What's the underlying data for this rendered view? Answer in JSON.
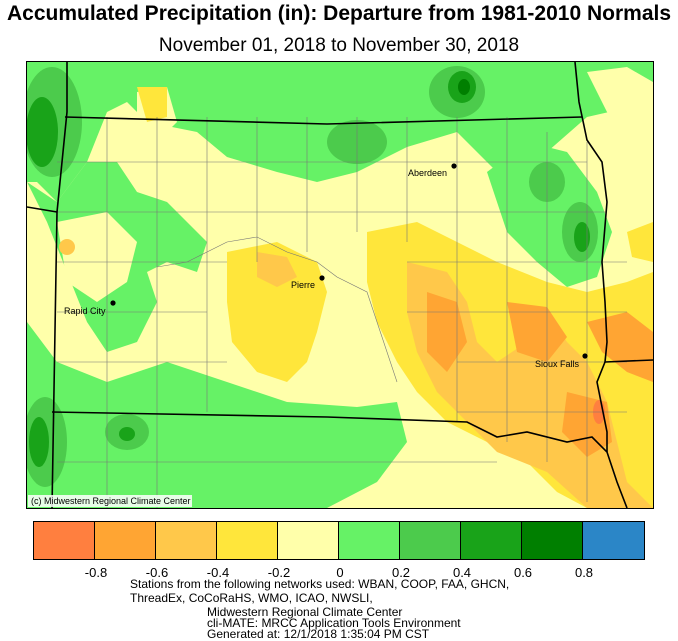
{
  "title": "Accumulated Precipitation (in): Departure from 1981-2010 Normals",
  "subtitle": "November 01, 2018 to November 30, 2018",
  "credit": "(c) Midwestern Regional Climate Center",
  "cities": [
    {
      "name": "Aberdeen"
    },
    {
      "name": "Pierre"
    },
    {
      "name": "Rapid City"
    },
    {
      "name": "Sioux Falls"
    }
  ],
  "legend": {
    "colors": [
      "#ff7f3f",
      "#ffa533",
      "#ffc84a",
      "#ffe63b",
      "#ffffaa",
      "#66f266",
      "#4ccb4c",
      "#19a319",
      "#007f00",
      "#2b86c7"
    ],
    "ticks": [
      "-0.8",
      "-0.6",
      "-0.4",
      "-0.2",
      "0",
      "0.2",
      "0.4",
      "0.6",
      "0.8"
    ]
  },
  "footer": {
    "line1": "Stations from the following networks used: WBAN, COOP, FAA, GHCN,",
    "line2": "ThreadEx, CoCoRaHS, WMO, ICAO, NWSLI,",
    "line3": "Midwestern Regional Climate Center",
    "line4": "cli-MATE: MRCC Application Tools Environment",
    "line5": "Generated at: 12/1/2018 1:35:04 PM CST"
  }
}
